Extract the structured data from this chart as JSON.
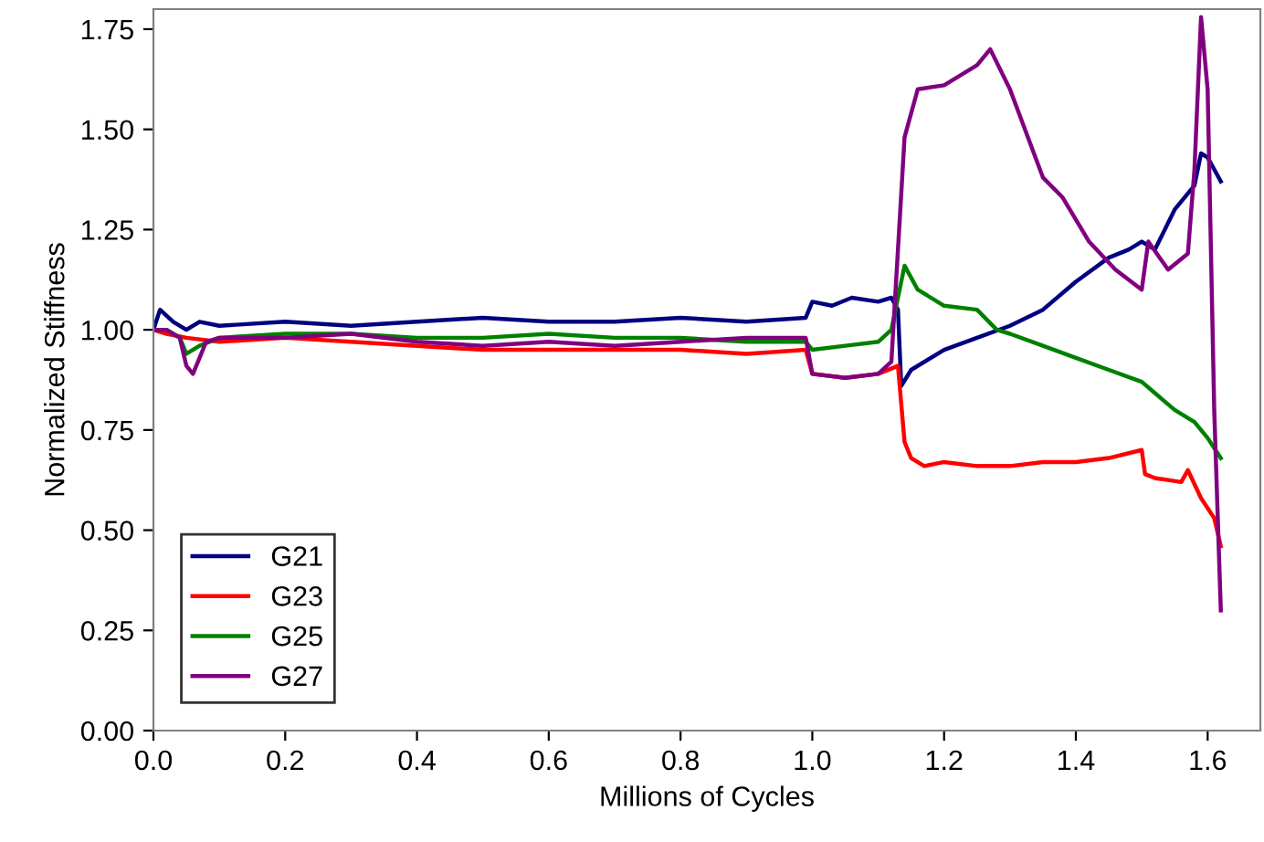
{
  "chart_data": {
    "type": "line",
    "xlabel": "Millions of Cycles",
    "ylabel": "Normalized Stiffness",
    "xlim": [
      0,
      1.68
    ],
    "ylim": [
      0,
      1.8
    ],
    "xticks": [
      {
        "value": 0,
        "label": "0.0"
      },
      0.2,
      0.4,
      0.6,
      0.8,
      {
        "value": 1,
        "label": "1.0"
      },
      1.2,
      1.4,
      1.6
    ],
    "yticks": [
      {
        "value": 0,
        "label": "0.00"
      },
      0.25,
      {
        "value": 0.5,
        "label": "0.50"
      },
      0.75,
      {
        "value": 1,
        "label": "1.00"
      },
      1.25,
      {
        "value": 1.5,
        "label": "1.50"
      },
      1.75
    ],
    "grid": false,
    "legend": "bottom left",
    "marker": "none",
    "line_style": "solid",
    "series": [
      {
        "name": "G21",
        "color": "#000080",
        "x": [
          0,
          0.01,
          0.03,
          0.05,
          0.07,
          0.1,
          0.2,
          0.3,
          0.4,
          0.5,
          0.6,
          0.7,
          0.8,
          0.9,
          0.99,
          1.0,
          1.03,
          1.06,
          1.1,
          1.12,
          1.13,
          1.135,
          1.15,
          1.2,
          1.25,
          1.3,
          1.35,
          1.4,
          1.45,
          1.48,
          1.5,
          1.52,
          1.55,
          1.58,
          1.59,
          1.6,
          1.61,
          1.62
        ],
        "values": [
          1.0,
          1.05,
          1.02,
          1.0,
          1.02,
          1.01,
          1.02,
          1.01,
          1.02,
          1.03,
          1.02,
          1.02,
          1.03,
          1.02,
          1.03,
          1.07,
          1.06,
          1.08,
          1.07,
          1.08,
          1.05,
          0.86,
          0.9,
          0.95,
          0.98,
          1.01,
          1.05,
          1.12,
          1.18,
          1.2,
          1.22,
          1.2,
          1.3,
          1.36,
          1.44,
          1.43,
          1.4,
          1.37
        ]
      },
      {
        "name": "G23",
        "color": "#ff0000",
        "x": [
          0,
          0.02,
          0.05,
          0.1,
          0.2,
          0.3,
          0.4,
          0.5,
          0.6,
          0.7,
          0.8,
          0.9,
          0.99,
          1.0,
          1.05,
          1.1,
          1.13,
          1.14,
          1.15,
          1.17,
          1.2,
          1.25,
          1.3,
          1.35,
          1.4,
          1.45,
          1.5,
          1.505,
          1.52,
          1.56,
          1.57,
          1.59,
          1.61,
          1.62
        ],
        "values": [
          1.0,
          0.99,
          0.98,
          0.97,
          0.98,
          0.97,
          0.96,
          0.95,
          0.95,
          0.95,
          0.95,
          0.94,
          0.95,
          0.89,
          0.88,
          0.89,
          0.91,
          0.72,
          0.68,
          0.66,
          0.67,
          0.66,
          0.66,
          0.67,
          0.67,
          0.68,
          0.7,
          0.64,
          0.63,
          0.62,
          0.65,
          0.58,
          0.53,
          0.46
        ]
      },
      {
        "name": "G25",
        "color": "#008000",
        "x": [
          0,
          0.02,
          0.04,
          0.05,
          0.07,
          0.1,
          0.2,
          0.3,
          0.4,
          0.5,
          0.6,
          0.7,
          0.8,
          0.9,
          0.99,
          1.0,
          1.05,
          1.1,
          1.12,
          1.14,
          1.16,
          1.2,
          1.25,
          1.28,
          1.3,
          1.35,
          1.4,
          1.45,
          1.5,
          1.55,
          1.58,
          1.6,
          1.62
        ],
        "values": [
          1.0,
          1.0,
          0.98,
          0.94,
          0.96,
          0.98,
          0.99,
          0.99,
          0.98,
          0.98,
          0.99,
          0.98,
          0.98,
          0.97,
          0.97,
          0.95,
          0.96,
          0.97,
          1.0,
          1.16,
          1.1,
          1.06,
          1.05,
          1.0,
          0.99,
          0.96,
          0.93,
          0.9,
          0.87,
          0.8,
          0.77,
          0.73,
          0.68
        ]
      },
      {
        "name": "G27",
        "color": "#800080",
        "x": [
          0,
          0.02,
          0.04,
          0.05,
          0.06,
          0.07,
          0.08,
          0.1,
          0.2,
          0.3,
          0.4,
          0.5,
          0.6,
          0.7,
          0.8,
          0.9,
          0.99,
          1.0,
          1.05,
          1.1,
          1.12,
          1.13,
          1.14,
          1.16,
          1.2,
          1.25,
          1.27,
          1.3,
          1.35,
          1.38,
          1.42,
          1.46,
          1.5,
          1.51,
          1.54,
          1.57,
          1.58,
          1.59,
          1.6,
          1.61,
          1.62
        ],
        "values": [
          1.0,
          1.0,
          0.98,
          0.91,
          0.89,
          0.93,
          0.97,
          0.98,
          0.98,
          0.99,
          0.97,
          0.96,
          0.97,
          0.96,
          0.97,
          0.98,
          0.98,
          0.89,
          0.88,
          0.89,
          0.92,
          1.2,
          1.48,
          1.6,
          1.61,
          1.66,
          1.7,
          1.6,
          1.38,
          1.33,
          1.22,
          1.15,
          1.1,
          1.22,
          1.15,
          1.19,
          1.4,
          1.78,
          1.6,
          0.8,
          0.3
        ]
      }
    ]
  }
}
